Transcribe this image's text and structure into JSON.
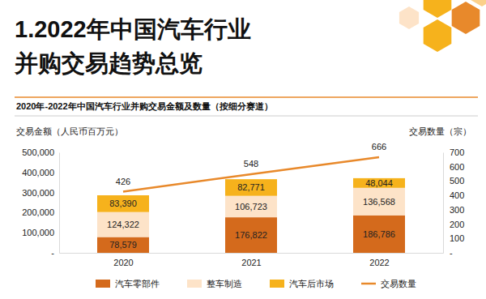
{
  "chart_data": {
    "type": "bar",
    "title": [
      "1.2022年中国汽车行业",
      "并购交易趋势总览"
    ],
    "subtitle": "2020年-2022年中国汽车行业并购交易金额及数量（按细分赛道）",
    "y_label": "交易金额（人民币百万元）",
    "y2_label": "交易数量（宗）",
    "categories": [
      "2020",
      "2021",
      "2022"
    ],
    "stacked": true,
    "data_labels": true,
    "legend": "bottom",
    "series": [
      {
        "name": "汽车零部件",
        "color": "#d46a1c",
        "values": [
          78579,
          176822,
          186786
        ],
        "value_labels": [
          "78,579",
          "176,822",
          "186,786"
        ]
      },
      {
        "name": "整车制造",
        "color": "#fde3c8",
        "values": [
          124322,
          106723,
          136568
        ],
        "value_labels": [
          "124,322",
          "106,723",
          "136,568"
        ]
      },
      {
        "name": "汽车后市场",
        "color": "#f6b21c",
        "values": [
          83390,
          82771,
          48044
        ],
        "value_labels": [
          "83,390",
          "82,771",
          "48,044"
        ]
      },
      {
        "name": "交易数量",
        "color": "#e8892b",
        "type": "line",
        "axis": "y2",
        "values": [
          426,
          548,
          666
        ]
      }
    ],
    "ylim": [
      0,
      500000
    ],
    "yticks": [
      {
        "value": 0,
        "label": "-"
      },
      {
        "value": 100000,
        "label": "100,000"
      },
      {
        "value": 200000,
        "label": "200,000"
      },
      {
        "value": 300000,
        "label": "300,000"
      },
      {
        "value": 400000,
        "label": "400,000"
      },
      {
        "value": 500000,
        "label": "500,000"
      }
    ],
    "y2lim": [
      0,
      700
    ],
    "y2ticks": [
      {
        "value": 0,
        "label": "-"
      },
      100,
      200,
      300,
      400,
      500,
      600,
      700
    ]
  }
}
